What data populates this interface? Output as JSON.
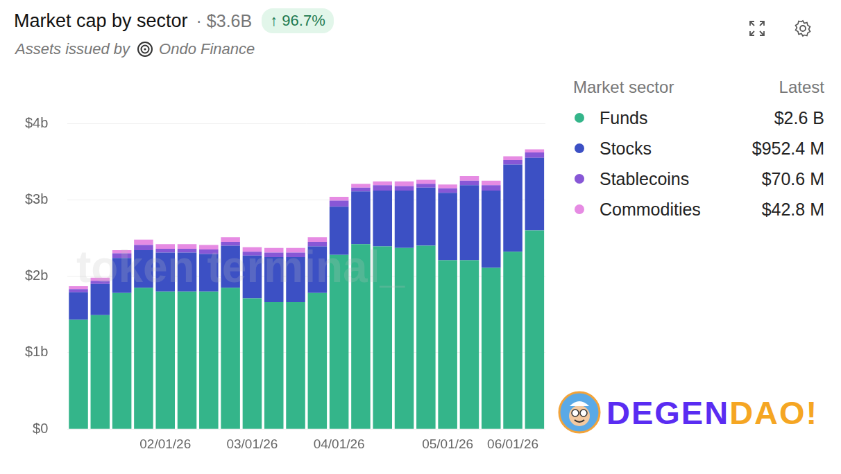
{
  "header": {
    "title": "Market cap by sector",
    "total": "· $3.6B",
    "change": "↑ 96.7%",
    "subtitle": "Assets issued by",
    "issuer": "Ondo Finance"
  },
  "chart_data": {
    "type": "bar",
    "stacked": true,
    "grid": true,
    "legend": "right",
    "categories": [
      null,
      null,
      null,
      null,
      "02/01/26",
      null,
      null,
      null,
      "03/01/26",
      null,
      null,
      null,
      "04/01/26",
      null,
      null,
      null,
      null,
      "05/01/26",
      null,
      null,
      "06/01/26",
      null
    ],
    "series": [
      {
        "name": "Funds",
        "color": "#34b58a",
        "values": [
          1.43,
          1.49,
          1.78,
          1.85,
          1.8,
          1.8,
          1.8,
          1.85,
          1.71,
          1.66,
          1.66,
          1.78,
          2.28,
          2.42,
          2.39,
          2.37,
          2.4,
          2.21,
          2.21,
          2.11,
          2.32,
          2.6
        ]
      },
      {
        "name": "Stocks",
        "color": "#3c50c4",
        "values": [
          0.36,
          0.41,
          0.46,
          0.49,
          0.51,
          0.51,
          0.49,
          0.55,
          0.56,
          0.59,
          0.59,
          0.61,
          0.63,
          0.69,
          0.73,
          0.75,
          0.76,
          0.88,
          0.98,
          1.01,
          1.14,
          0.95
        ]
      },
      {
        "name": "Stablecoins",
        "color": "#8757d6",
        "values": [
          0.04,
          0.04,
          0.06,
          0.07,
          0.05,
          0.05,
          0.06,
          0.05,
          0.05,
          0.06,
          0.06,
          0.06,
          0.08,
          0.05,
          0.07,
          0.06,
          0.05,
          0.06,
          0.06,
          0.07,
          0.06,
          0.07
        ]
      },
      {
        "name": "Commodities",
        "color": "#e68be3",
        "values": [
          0.04,
          0.04,
          0.04,
          0.07,
          0.06,
          0.06,
          0.06,
          0.06,
          0.06,
          0.06,
          0.06,
          0.06,
          0.05,
          0.05,
          0.05,
          0.06,
          0.05,
          0.05,
          0.06,
          0.06,
          0.05,
          0.04
        ]
      }
    ],
    "ylim": [
      0,
      4
    ],
    "yticks": [
      {
        "value": 0,
        "label": "$0"
      },
      {
        "value": 1,
        "label": "$1b"
      },
      {
        "value": 2,
        "label": "$2b"
      },
      {
        "value": 3,
        "label": "$3b"
      },
      {
        "value": 4,
        "label": "$4b"
      }
    ]
  },
  "legend_table": {
    "columns": [
      "Market sector",
      "Latest"
    ],
    "latest": [
      "$2.6 B",
      "$952.4 M",
      "$70.6 M",
      "$42.8 M"
    ]
  },
  "watermark": "token terminal_",
  "logo": [
    "DEGEN",
    "DAO!"
  ]
}
